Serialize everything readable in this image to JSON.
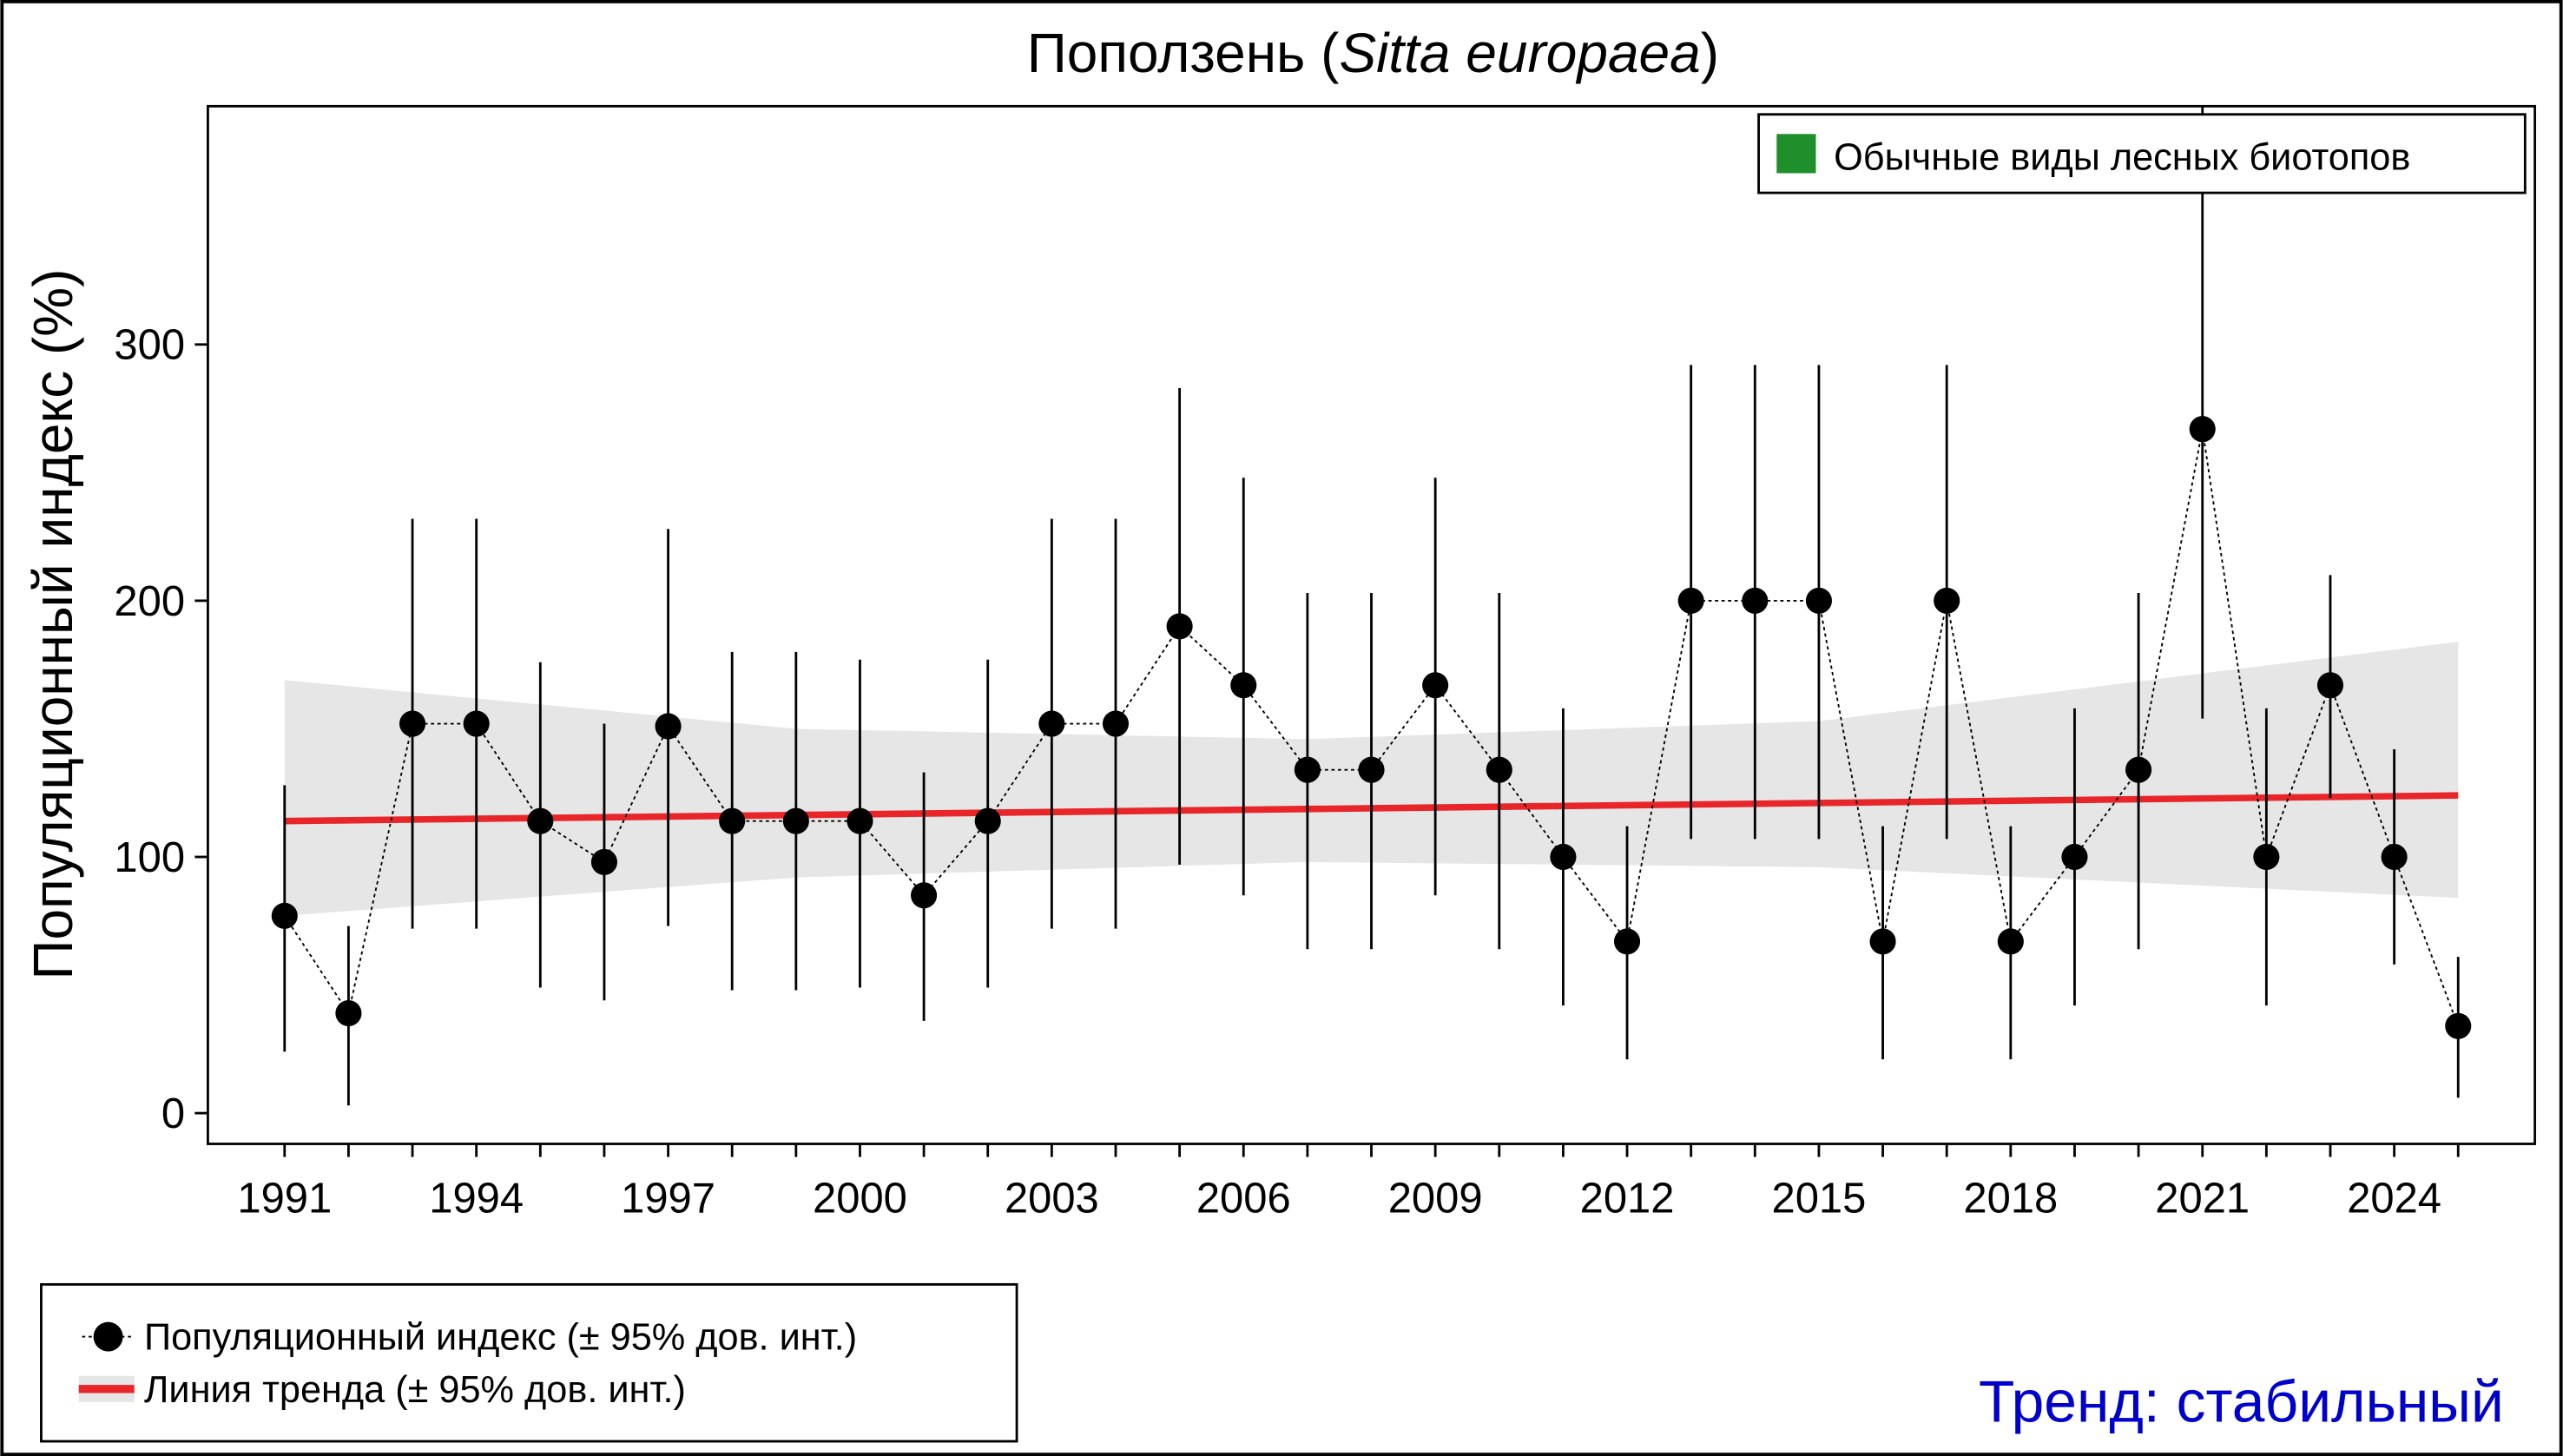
{
  "chart_data": {
    "type": "line",
    "title": {
      "prefix": "Поползень (",
      "italic": "Sitta europaea",
      "suffix": ")"
    },
    "xlabel": "",
    "ylabel": "Популяционный индекс (%)",
    "ylim": [
      -12,
      393
    ],
    "xlim": [
      1989.8,
      2026.2
    ],
    "yticks": [
      0,
      100,
      200,
      300
    ],
    "xticks": [
      1991,
      1994,
      1997,
      2000,
      2003,
      2006,
      2009,
      2012,
      2015,
      2018,
      2021,
      2024
    ],
    "grid": false,
    "x": [
      1991,
      1992,
      1993,
      1994,
      1995,
      1996,
      1997,
      1998,
      1999,
      2000,
      2001,
      2002,
      2003,
      2004,
      2005,
      2006,
      2007,
      2008,
      2009,
      2010,
      2011,
      2012,
      2013,
      2014,
      2015,
      2016,
      2017,
      2018,
      2019,
      2020,
      2021,
      2022,
      2023,
      2024,
      2025
    ],
    "series": [
      {
        "name": "Популяционный индекс (± 95% дов. инт.)",
        "values": [
          77,
          39,
          152,
          152,
          114,
          98,
          151,
          114,
          114,
          114,
          85,
          114,
          152,
          152,
          190,
          167,
          134,
          134,
          167,
          134,
          100,
          67,
          200,
          200,
          200,
          67,
          200,
          67,
          100,
          134,
          267,
          100,
          167,
          100,
          34
        ],
        "ci_upper": [
          128,
          73,
          232,
          232,
          176,
          152,
          228,
          180,
          180,
          177,
          133,
          177,
          232,
          232,
          283,
          248,
          203,
          203,
          248,
          203,
          158,
          112,
          292,
          292,
          292,
          112,
          292,
          112,
          158,
          203,
          400,
          158,
          210,
          142,
          61
        ],
        "ci_lower": [
          24,
          3,
          72,
          72,
          49,
          44,
          73,
          48,
          48,
          49,
          36,
          49,
          72,
          72,
          97,
          85,
          64,
          64,
          85,
          64,
          42,
          21,
          107,
          107,
          107,
          21,
          107,
          21,
          42,
          64,
          154,
          42,
          123,
          58,
          6
        ],
        "color": "#000000"
      },
      {
        "name": "Линия тренда (± 95% дов. инт.)",
        "trend_start": 114,
        "trend_end": 124,
        "band_x": [
          1991,
          1999,
          2007,
          2015,
          2025
        ],
        "band_lower": [
          77,
          92,
          98,
          96,
          84
        ],
        "band_upper": [
          169,
          150,
          146,
          153,
          184
        ],
        "color": "#e8262a",
        "band_color": "#e6e6e6"
      }
    ],
    "legend": {
      "placement": "bottom-left"
    },
    "group_legend": {
      "label": "Обычные виды лесных биотопов",
      "color": "#1f8f2c",
      "placement": "top-right"
    },
    "annotation": {
      "text": "Тренд: стабильный",
      "color": "#0000cc"
    }
  }
}
